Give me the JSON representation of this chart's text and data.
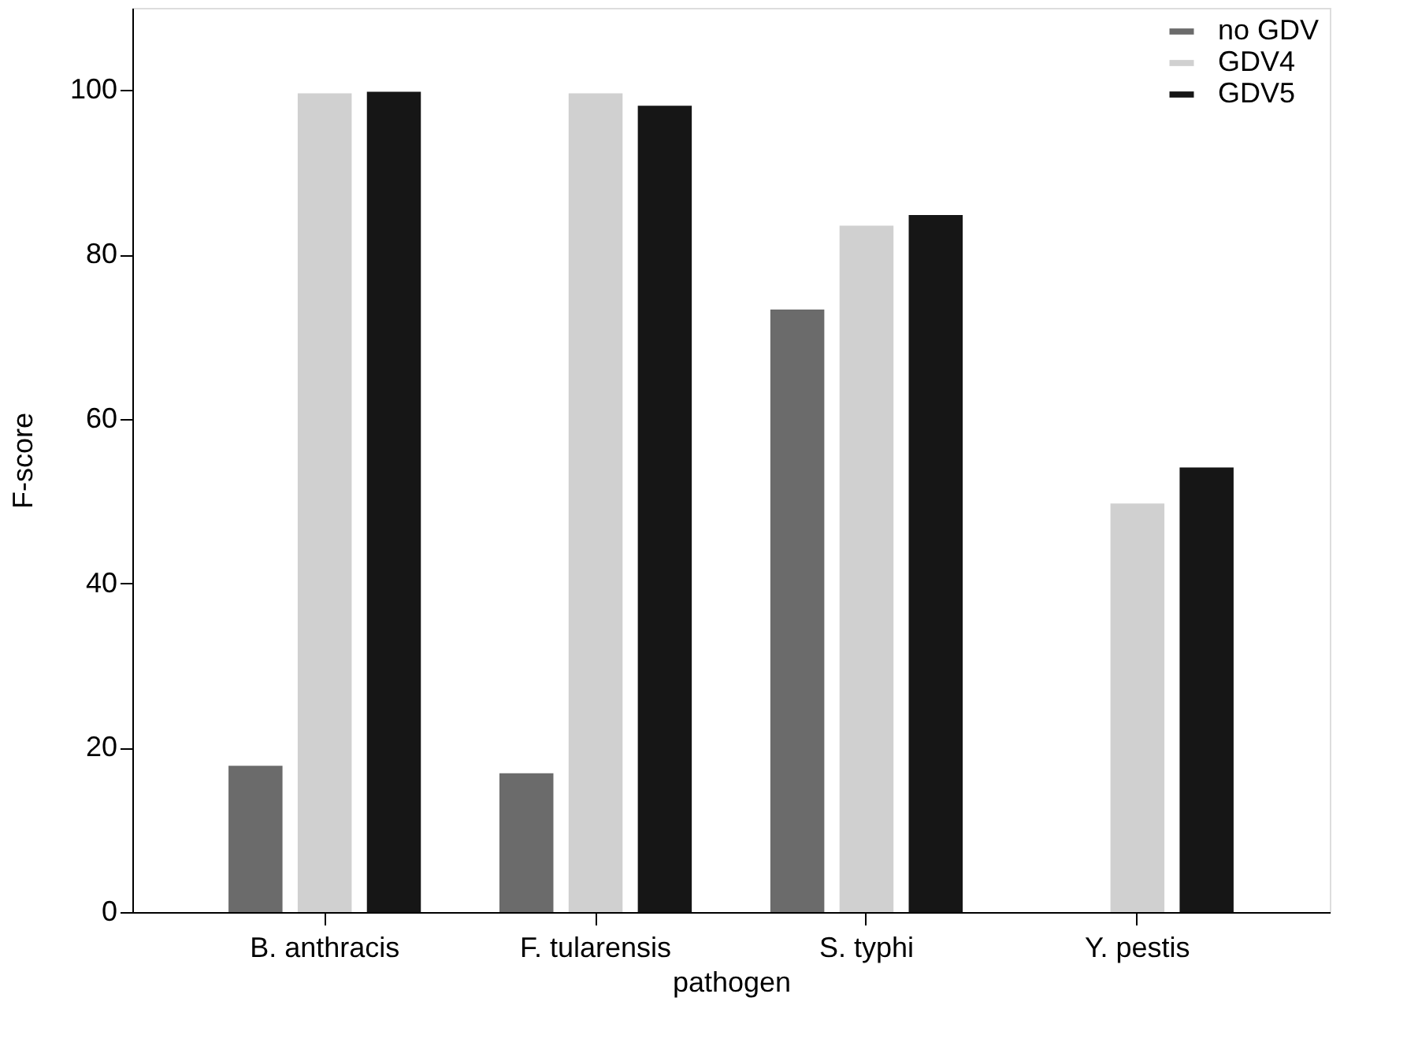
{
  "chart_data": {
    "type": "bar",
    "xlabel": "pathogen",
    "ylabel": "F-score",
    "categories": [
      "B. anthracis",
      "F. tularensis",
      "S. typhi",
      "Y. pestis"
    ],
    "series": [
      {
        "name": "no GDV",
        "color": "#6b6b6b",
        "values": [
          17.8,
          16.9,
          73.3,
          null
        ]
      },
      {
        "name": "GDV4",
        "color": "#d0d0d0",
        "values": [
          99.6,
          99.6,
          83.5,
          49.7
        ]
      },
      {
        "name": "GDV5",
        "color": "#161616",
        "values": [
          99.8,
          98.1,
          84.8,
          54.1
        ]
      }
    ],
    "ylim": [
      0,
      110
    ],
    "yticks": [
      0,
      20,
      40,
      60,
      80,
      100
    ],
    "grid": false,
    "legend": "top right"
  }
}
